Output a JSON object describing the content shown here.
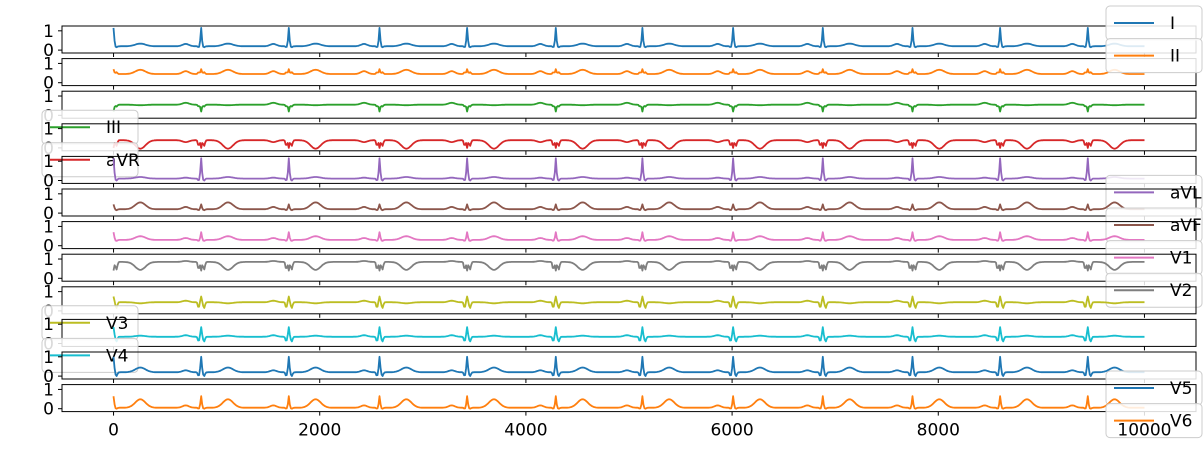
{
  "chart_data": {
    "type": "line",
    "layout": "12 stacked subplots sharing the x axis",
    "x_axis": {
      "range": [
        -500,
        10500
      ],
      "ticks": [
        0,
        2000,
        4000,
        6000,
        8000,
        10000
      ],
      "tick_labels": [
        "0",
        "2000",
        "4000",
        "6000",
        "8000",
        "10000"
      ],
      "shown_on": "bottom subplot only"
    },
    "y_axis": {
      "ticks": [
        0,
        1
      ],
      "tick_labels": [
        "0",
        "1"
      ]
    },
    "grid": false,
    "sample_count": 10000,
    "beats_x": [
      0,
      850,
      1700,
      2580,
      3430,
      4290,
      5130,
      6010,
      6880,
      7750,
      8600,
      9450
    ],
    "series": [
      {
        "name": "I",
        "color": "#1f77b4",
        "legend_position": "upper right",
        "ylim": [
          -0.15,
          1.25
        ],
        "baseline": 0.2,
        "p_wave": 0.12,
        "qrs_peak": 1.15,
        "qrs_dip": -0.05,
        "t_wave": 0.45
      },
      {
        "name": "II",
        "color": "#ff7f0e",
        "legend_position": "upper right",
        "ylim": [
          -0.15,
          1.25
        ],
        "baseline": 0.45,
        "p_wave": 0.15,
        "qrs_peak": 0.7,
        "qrs_dip": 0.1,
        "t_wave": 0.85
      },
      {
        "name": "III",
        "color": "#2ca02c",
        "legend_position": "lower left",
        "ylim": [
          -0.15,
          1.25
        ],
        "baseline": 0.55,
        "p_wave": 0.1,
        "qrs_peak": 0.2,
        "qrs_dip": -0.1,
        "t_wave": 0.5
      },
      {
        "name": "aVR",
        "color": "#d62728",
        "legend_position": "lower left",
        "ylim": [
          -0.15,
          1.25
        ],
        "baseline": 0.4,
        "p_wave": -0.1,
        "qrs_peak": 0.0,
        "qrs_dip": -0.3,
        "t_wave": -0.4
      },
      {
        "name": "aVL",
        "color": "#9467bd",
        "legend_position": "lower right",
        "ylim": [
          -0.15,
          1.25
        ],
        "baseline": 0.1,
        "p_wave": 0.05,
        "qrs_peak": 1.15,
        "qrs_dip": -0.1,
        "t_wave": 0.25
      },
      {
        "name": "aVF",
        "color": "#8c564b",
        "legend_position": "lower right",
        "ylim": [
          -0.15,
          1.25
        ],
        "baseline": 0.2,
        "p_wave": 0.12,
        "qrs_peak": 0.45,
        "qrs_dip": -0.05,
        "t_wave": 0.85
      },
      {
        "name": "V1",
        "color": "#e377c2",
        "legend_position": "lower right",
        "ylim": [
          -0.15,
          1.25
        ],
        "baseline": 0.3,
        "p_wave": 0.1,
        "qrs_peak": 0.7,
        "qrs_dip": -0.05,
        "t_wave": 0.65
      },
      {
        "name": "V2",
        "color": "#7f7f7f",
        "legend_position": "lower right",
        "ylim": [
          -0.15,
          1.25
        ],
        "baseline": 0.85,
        "p_wave": 0.05,
        "qrs_peak": 0.4,
        "qrs_dip": -0.4,
        "t_wave": 0.1
      },
      {
        "name": "V3",
        "color": "#bcbd22",
        "legend_position": "lower left",
        "ylim": [
          -0.15,
          1.25
        ],
        "baseline": 0.45,
        "p_wave": 0.08,
        "qrs_peak": 0.75,
        "qrs_dip": -0.3,
        "t_wave": 0.35
      },
      {
        "name": "V4",
        "color": "#17becf",
        "legend_position": "lower left",
        "ylim": [
          -0.15,
          1.25
        ],
        "baseline": 0.35,
        "p_wave": 0.08,
        "qrs_peak": 0.85,
        "qrs_dip": -0.25,
        "t_wave": 0.45
      },
      {
        "name": "V5",
        "color": "#1f77b4",
        "legend_position": "lower right",
        "ylim": [
          -0.15,
          1.25
        ],
        "baseline": 0.2,
        "p_wave": 0.1,
        "qrs_peak": 1.0,
        "qrs_dip": -0.2,
        "t_wave": 0.65
      },
      {
        "name": "V6",
        "color": "#ff7f0e",
        "legend_position": "lower right",
        "ylim": [
          -0.15,
          1.25
        ],
        "baseline": 0.05,
        "p_wave": 0.12,
        "qrs_peak": 0.65,
        "qrs_dip": -0.05,
        "t_wave": 0.85
      }
    ]
  }
}
